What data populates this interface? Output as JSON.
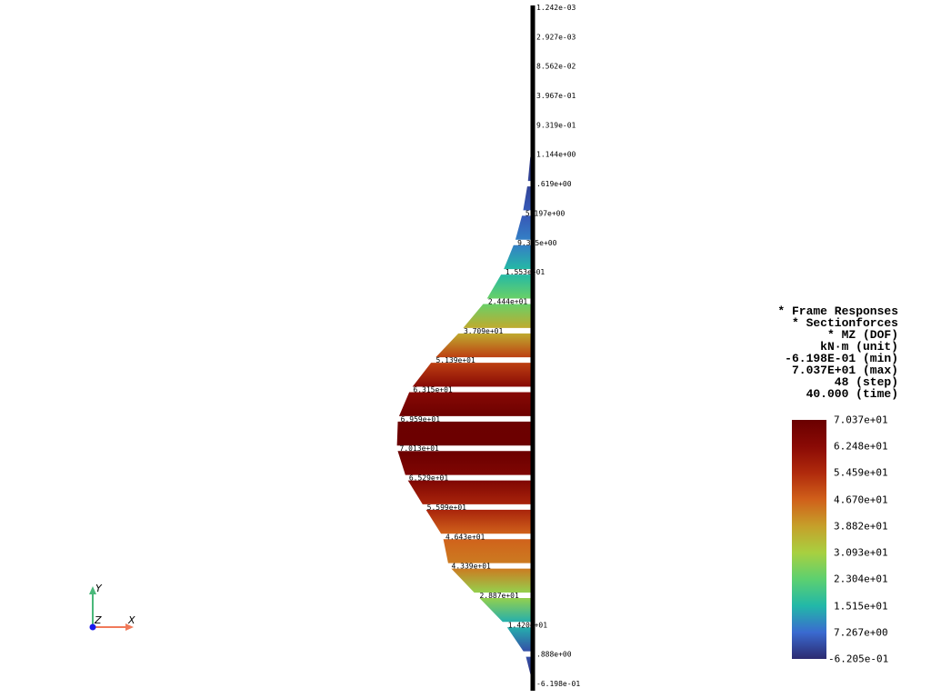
{
  "info": {
    "lines": [
      "* Frame Responses",
      "* Sectionforces",
      "* MZ (DOF)",
      "kN·m (unit)",
      "-6.198E-01 (min)",
      "7.037E+01 (max)",
      "48 (step)",
      "40.000 (time)"
    ]
  },
  "colorbar": {
    "labels": [
      "7.037e+01",
      "6.248e+01",
      "5.459e+01",
      "4.670e+01",
      "3.882e+01",
      "3.093e+01",
      "2.304e+01",
      "1.515e+01",
      "7.267e+00",
      "-6.205e-01"
    ],
    "colors": [
      "#6a0000",
      "#8a0a05",
      "#b02a0c",
      "#d0601a",
      "#c6a02a",
      "#a8d040",
      "#5cd070",
      "#22b8a8",
      "#3a6ad0",
      "#2c2a70"
    ]
  },
  "axes_widget": {
    "x_label": "X",
    "y_label": "Y",
    "z_label": "Z",
    "x_color": "#f07a5a",
    "y_color": "#4ab87a",
    "z_color": "#1a1aee"
  },
  "chart_data": {
    "type": "area",
    "title": "",
    "xlabel": "",
    "ylabel": "",
    "value_range": [
      -0.6205,
      70.37
    ],
    "segments": [
      {
        "label": "1.242e-03",
        "value": 0.001242
      },
      {
        "label": "2.927e-03",
        "value": 0.002927
      },
      {
        "label": "8.562e-02",
        "value": 0.08562
      },
      {
        "label": "3.967e-01",
        "value": 0.3967
      },
      {
        "label": "9.319e-01",
        "value": 0.9319
      },
      {
        "label": "1.144e+00",
        "value": 1.144
      },
      {
        "label": ".619e+00",
        "value": 2.619
      },
      {
        "label": "5.197e+00",
        "value": 5.197
      },
      {
        "label": "9.3_5e+00",
        "value": 9.35
      },
      {
        "label": "1.553e+01",
        "value": 15.53
      },
      {
        "label": "2.444e+01",
        "value": 24.44
      },
      {
        "label": "3.709e+01",
        "value": 37.09
      },
      {
        "label": "5.139e+01",
        "value": 51.39
      },
      {
        "label": "6.315e+01",
        "value": 63.15
      },
      {
        "label": "6.959e+01",
        "value": 69.59
      },
      {
        "label": "7.013e+01",
        "value": 70.13
      },
      {
        "label": "6.529e+01",
        "value": 65.29
      },
      {
        "label": "5.599e+01",
        "value": 55.99
      },
      {
        "label": "4.643e+01",
        "value": 46.43
      },
      {
        "label": "4.339e+01",
        "value": 43.39
      },
      {
        "label": "2.887e+01",
        "value": 28.87
      },
      {
        "label": "1.420e+01",
        "value": 14.2
      },
      {
        "label": ".888e+00",
        "value": 3.888
      },
      {
        "label": "-6.198e-01",
        "value": -0.6198
      }
    ]
  }
}
